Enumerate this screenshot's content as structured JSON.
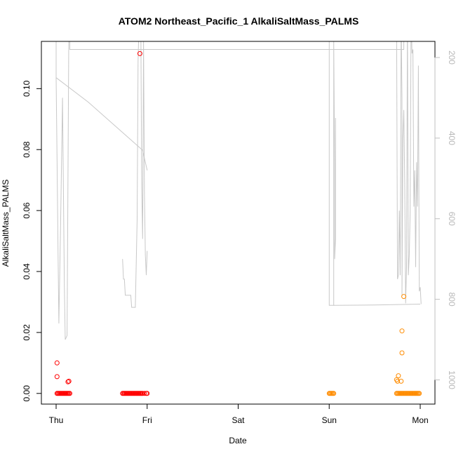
{
  "chart_data": {
    "type": "scatter",
    "title": "ATOM2 Northeast_Pacific_1 AlkaliSaltMass_PALMS",
    "xlabel": "Date",
    "ylabel": "AlkaliSaltMass_PALMS",
    "x_ticks": [
      "Thu",
      "Fri",
      "Sat",
      "Sun",
      "Mon"
    ],
    "xlim": [
      0,
      4.0
    ],
    "ylim": [
      -0.0035,
      0.1155
    ],
    "y_ticks": [
      0.0,
      0.02,
      0.04,
      0.06,
      0.08,
      0.1
    ],
    "y_tick_labels": [
      "0.00",
      "0.02",
      "0.04",
      "0.06",
      "0.08",
      "0.10"
    ],
    "right_axis": {
      "label": "",
      "color": "#bfbfbf",
      "lim": [
        1060,
        160
      ],
      "ticks": [
        200,
        400,
        600,
        800,
        1000
      ],
      "tick_labels": [
        "200",
        "400",
        "600",
        "800",
        "1000"
      ]
    },
    "grid": false,
    "legend": "none",
    "series": [
      {
        "color": "#ff0000",
        "points": [
          [
            0.01,
            0.0
          ],
          [
            0.02,
            0.0
          ],
          [
            0.03,
            0.0
          ],
          [
            0.04,
            0.0
          ],
          [
            0.05,
            0.0
          ],
          [
            0.06,
            0.0
          ],
          [
            0.07,
            0.0
          ],
          [
            0.08,
            0.0
          ],
          [
            0.09,
            0.0
          ],
          [
            0.1,
            0.0
          ],
          [
            0.11,
            0.0
          ],
          [
            0.12,
            0.0
          ],
          [
            0.13,
            0.0
          ],
          [
            0.14,
            0.0
          ],
          [
            0.15,
            0.0
          ],
          [
            0.01,
            0.0055
          ],
          [
            0.01,
            0.01
          ],
          [
            0.13,
            0.0038
          ],
          [
            0.14,
            0.004
          ],
          [
            0.73,
            0.0
          ],
          [
            0.74,
            0.0
          ],
          [
            0.75,
            0.0
          ],
          [
            0.76,
            0.0
          ],
          [
            0.77,
            0.0
          ],
          [
            0.78,
            0.0
          ],
          [
            0.79,
            0.0
          ],
          [
            0.8,
            0.0
          ],
          [
            0.81,
            0.0
          ],
          [
            0.82,
            0.0
          ],
          [
            0.83,
            0.0
          ],
          [
            0.84,
            0.0
          ],
          [
            0.85,
            0.0
          ],
          [
            0.86,
            0.0
          ],
          [
            0.87,
            0.0
          ],
          [
            0.88,
            0.0
          ],
          [
            0.89,
            0.0
          ],
          [
            0.9,
            0.0
          ],
          [
            0.91,
            0.0
          ],
          [
            0.92,
            0.0
          ],
          [
            0.93,
            0.0
          ],
          [
            0.94,
            0.0
          ],
          [
            0.95,
            0.0
          ],
          [
            0.97,
            0.0
          ],
          [
            0.99,
            0.0
          ],
          [
            1.0,
            0.0
          ],
          [
            0.92,
            0.1115
          ]
        ]
      },
      {
        "color": "#ff8c00",
        "points": [
          [
            3.0,
            0.0
          ],
          [
            3.01,
            0.0
          ],
          [
            3.02,
            0.0
          ],
          [
            3.03,
            0.0
          ],
          [
            3.04,
            0.0
          ],
          [
            3.05,
            0.0
          ],
          [
            3.74,
            0.0
          ],
          [
            3.75,
            0.0
          ],
          [
            3.76,
            0.0
          ],
          [
            3.77,
            0.0
          ],
          [
            3.78,
            0.0
          ],
          [
            3.79,
            0.0
          ],
          [
            3.8,
            0.0
          ],
          [
            3.81,
            0.0
          ],
          [
            3.82,
            0.0
          ],
          [
            3.83,
            0.0
          ],
          [
            3.84,
            0.0
          ],
          [
            3.85,
            0.0
          ],
          [
            3.86,
            0.0
          ],
          [
            3.87,
            0.0
          ],
          [
            3.88,
            0.0
          ],
          [
            3.89,
            0.0
          ],
          [
            3.9,
            0.0
          ],
          [
            3.91,
            0.0
          ],
          [
            3.92,
            0.0
          ],
          [
            3.93,
            0.0
          ],
          [
            3.94,
            0.0
          ],
          [
            3.95,
            0.0
          ],
          [
            3.96,
            0.0
          ],
          [
            3.97,
            0.0
          ],
          [
            3.98,
            0.0
          ],
          [
            3.99,
            0.0
          ],
          [
            3.74,
            0.0045
          ],
          [
            3.75,
            0.004
          ],
          [
            3.76,
            0.0058
          ],
          [
            3.79,
            0.004
          ],
          [
            3.8,
            0.0205
          ],
          [
            3.8,
            0.0133
          ],
          [
            3.82,
            0.0318
          ]
        ]
      }
    ],
    "secondary_line": {
      "color": "#c8c8c8",
      "segments": [
        [
          [
            0.0,
            140
          ],
          [
            0.0,
            250
          ],
          [
            0.01,
            450
          ],
          [
            0.02,
            660
          ],
          [
            0.03,
            860
          ],
          [
            0.05,
            600
          ],
          [
            0.07,
            300
          ],
          [
            0.09,
            760
          ],
          [
            0.1,
            900
          ],
          [
            0.12,
            890
          ],
          [
            0.14,
            100
          ],
          [
            0.14,
            120
          ],
          [
            0.15,
            120
          ],
          [
            0.15,
            180
          ],
          [
            2.0,
            180
          ],
          [
            3.06,
            180
          ],
          [
            3.82,
            180
          ],
          [
            3.82,
            160
          ]
        ],
        [
          [
            0.0,
            250
          ],
          [
            0.35,
            310
          ],
          [
            0.7,
            380
          ],
          [
            0.95,
            430
          ],
          [
            1.0,
            480
          ]
        ],
        [
          [
            0.73,
            700
          ],
          [
            0.74,
            750
          ],
          [
            0.75,
            750
          ],
          [
            0.76,
            790
          ],
          [
            0.82,
            790
          ],
          [
            0.83,
            820
          ],
          [
            0.87,
            820
          ],
          [
            0.89,
            600
          ],
          [
            0.9,
            210
          ],
          [
            0.91,
            120
          ],
          [
            0.93,
            110
          ],
          [
            0.94,
            520
          ],
          [
            0.95,
            650
          ],
          [
            0.96,
            160
          ],
          [
            0.97,
            540
          ],
          [
            0.98,
            690
          ],
          [
            0.99,
            740
          ],
          [
            1.0,
            680
          ]
        ],
        [
          [
            3.0,
            140
          ],
          [
            3.0,
            815
          ],
          [
            3.05,
            815
          ],
          [
            3.05,
            160
          ],
          [
            3.06,
            470
          ],
          [
            3.06,
            700
          ],
          [
            3.07,
            650
          ],
          [
            3.07,
            350
          ]
        ],
        [
          [
            3.05,
            815
          ],
          [
            3.5,
            814
          ],
          [
            4.0,
            812
          ]
        ],
        [
          [
            3.74,
            100
          ],
          [
            3.75,
            750
          ],
          [
            3.76,
            740
          ],
          [
            3.77,
            580
          ],
          [
            3.78,
            740
          ],
          [
            3.79,
            100
          ],
          [
            3.8,
            300
          ],
          [
            3.8,
            790
          ],
          [
            3.81,
            400
          ],
          [
            3.82,
            330
          ],
          [
            3.83,
            510
          ],
          [
            3.84,
            810
          ],
          [
            3.85,
            720
          ],
          [
            3.86,
            100
          ],
          [
            3.87,
            740
          ],
          [
            3.88,
            690
          ],
          [
            3.89,
            580
          ],
          [
            3.9,
            90
          ],
          [
            3.91,
            190
          ],
          [
            3.92,
            180
          ],
          [
            3.93,
            570
          ],
          [
            3.94,
            480
          ],
          [
            3.95,
            720
          ],
          [
            3.96,
            460
          ],
          [
            3.97,
            570
          ],
          [
            3.98,
            220
          ],
          [
            3.99,
            780
          ],
          [
            4.0,
            770
          ],
          [
            4.01,
            812
          ]
        ]
      ]
    }
  }
}
